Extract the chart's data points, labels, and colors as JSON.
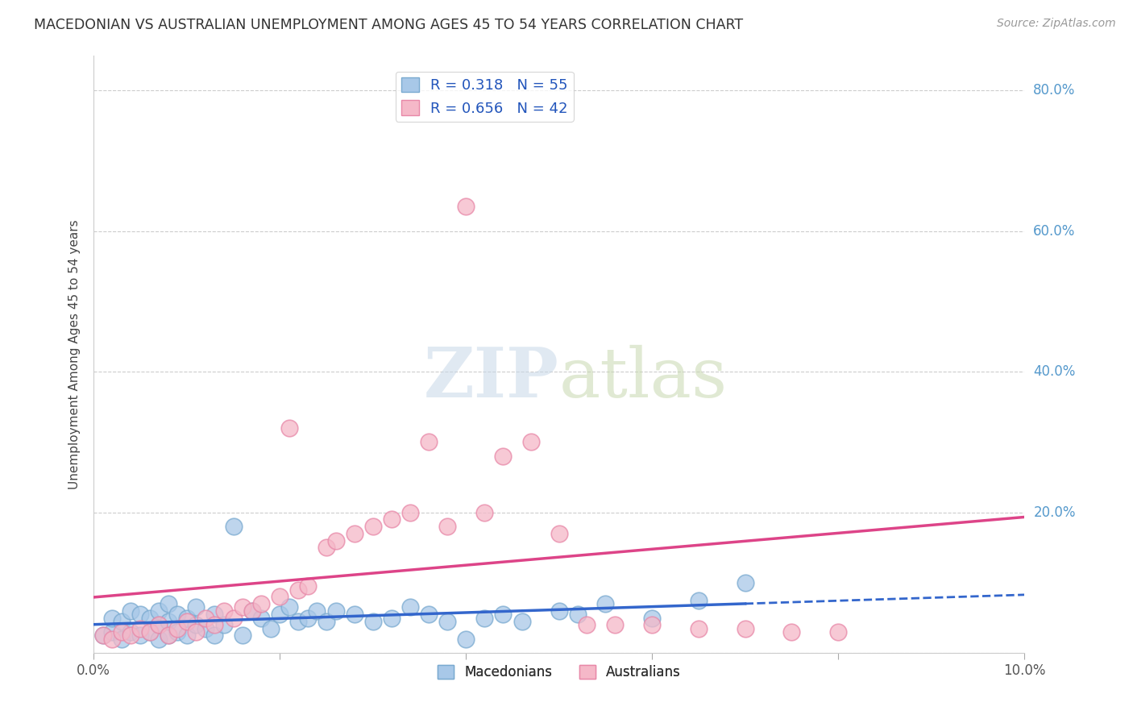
{
  "title": "MACEDONIAN VS AUSTRALIAN UNEMPLOYMENT AMONG AGES 45 TO 54 YEARS CORRELATION CHART",
  "source": "Source: ZipAtlas.com",
  "ylabel": "Unemployment Among Ages 45 to 54 years",
  "xlim": [
    0.0,
    0.1
  ],
  "ylim": [
    0.0,
    0.85
  ],
  "xtick_vals": [
    0.0,
    0.02,
    0.04,
    0.06,
    0.08,
    0.1
  ],
  "ytick_vals": [
    0.0,
    0.2,
    0.4,
    0.6,
    0.8
  ],
  "macedonian_color": "#a8c8e8",
  "macedonian_edge_color": "#7aaad0",
  "australian_color": "#f5b8c8",
  "australian_edge_color": "#e888a8",
  "macedonian_line_color": "#3366cc",
  "australian_line_color": "#dd4488",
  "macedonian_R": 0.318,
  "macedonian_N": 55,
  "australian_R": 0.656,
  "australian_N": 42,
  "mac_line_solid_end": 0.07,
  "mac_line_dash_start": 0.07,
  "mac_line_end": 0.1,
  "macedonian_scatter_x": [
    0.001,
    0.002,
    0.002,
    0.003,
    0.003,
    0.004,
    0.004,
    0.005,
    0.005,
    0.006,
    0.006,
    0.007,
    0.007,
    0.007,
    0.008,
    0.008,
    0.008,
    0.009,
    0.009,
    0.01,
    0.01,
    0.011,
    0.011,
    0.012,
    0.013,
    0.013,
    0.014,
    0.015,
    0.016,
    0.017,
    0.018,
    0.019,
    0.02,
    0.021,
    0.022,
    0.023,
    0.024,
    0.025,
    0.026,
    0.028,
    0.03,
    0.032,
    0.034,
    0.036,
    0.038,
    0.04,
    0.042,
    0.044,
    0.046,
    0.05,
    0.052,
    0.055,
    0.06,
    0.065,
    0.07
  ],
  "macedonian_scatter_y": [
    0.025,
    0.03,
    0.05,
    0.02,
    0.045,
    0.03,
    0.06,
    0.025,
    0.055,
    0.03,
    0.05,
    0.02,
    0.04,
    0.06,
    0.025,
    0.045,
    0.07,
    0.03,
    0.055,
    0.025,
    0.05,
    0.04,
    0.065,
    0.035,
    0.025,
    0.055,
    0.04,
    0.18,
    0.025,
    0.06,
    0.05,
    0.035,
    0.055,
    0.065,
    0.045,
    0.05,
    0.06,
    0.045,
    0.06,
    0.055,
    0.045,
    0.05,
    0.065,
    0.055,
    0.045,
    0.02,
    0.05,
    0.055,
    0.045,
    0.06,
    0.055,
    0.07,
    0.05,
    0.075,
    0.1
  ],
  "australian_scatter_x": [
    0.001,
    0.002,
    0.003,
    0.004,
    0.005,
    0.006,
    0.007,
    0.008,
    0.009,
    0.01,
    0.011,
    0.012,
    0.013,
    0.014,
    0.015,
    0.016,
    0.017,
    0.018,
    0.02,
    0.021,
    0.022,
    0.023,
    0.025,
    0.026,
    0.028,
    0.03,
    0.032,
    0.034,
    0.036,
    0.038,
    0.04,
    0.042,
    0.044,
    0.047,
    0.05,
    0.053,
    0.056,
    0.06,
    0.065,
    0.07,
    0.075,
    0.08
  ],
  "australian_scatter_y": [
    0.025,
    0.02,
    0.03,
    0.025,
    0.035,
    0.03,
    0.04,
    0.025,
    0.035,
    0.045,
    0.03,
    0.05,
    0.04,
    0.06,
    0.05,
    0.065,
    0.06,
    0.07,
    0.08,
    0.32,
    0.09,
    0.095,
    0.15,
    0.16,
    0.17,
    0.18,
    0.19,
    0.2,
    0.3,
    0.18,
    0.635,
    0.2,
    0.28,
    0.3,
    0.17,
    0.04,
    0.04,
    0.04,
    0.035,
    0.035,
    0.03,
    0.03
  ]
}
